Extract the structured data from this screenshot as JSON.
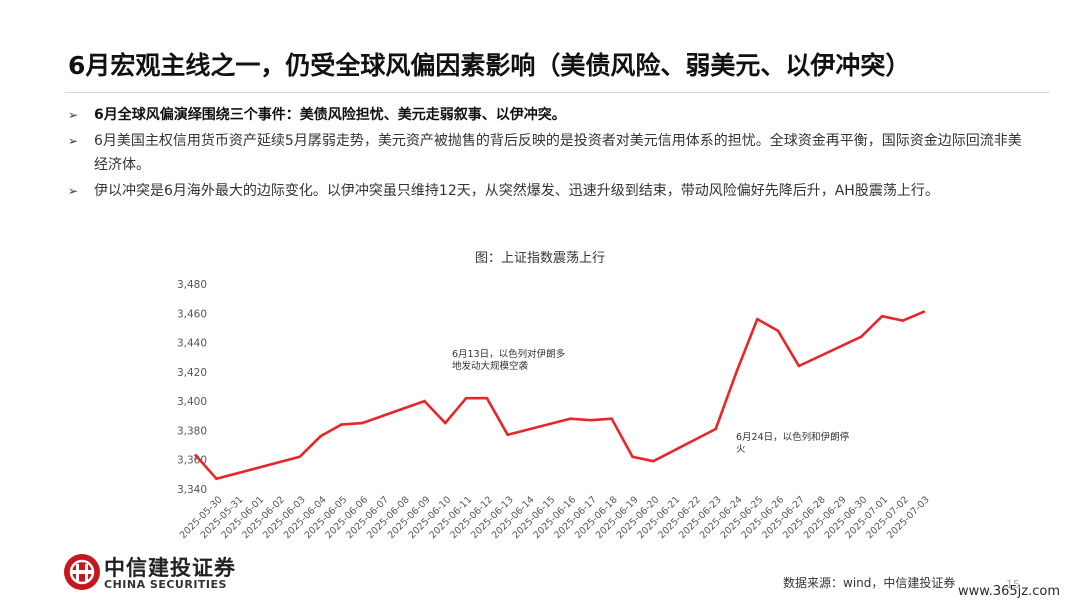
{
  "slide": {
    "title": "6月宏观主线之一，仍受全球风偏因素影响（美债风险、弱美元、以伊冲突）",
    "bullet_marker": "➢",
    "bullets": [
      {
        "text": "6月全球风偏演绎围绕三个事件：美债风险担忧、美元走弱叙事、以伊冲突。",
        "bold": true
      },
      {
        "text": "6月美国主权信用货币资产延续5月孱弱走势，美元资产被抛售的背后反映的是投资者对美元信用体系的担忧。全球资金再平衡，国际资金边际回流非美经济体。",
        "bold": false
      },
      {
        "text": "伊以冲突是6月海外最大的边际变化。以伊冲突虽只维持12天，从突然爆发、迅速升级到结束，带动风险偏好先降后升，AH股震荡上行。",
        "bold": false
      }
    ],
    "source": "数据来源：wind，中信建投证券",
    "page_number": "15",
    "watermark": "www.365jz.com"
  },
  "logo": {
    "name_cn": "中信建投证券",
    "name_en": "CHINA SECURITIES",
    "color": "#c8161d"
  },
  "chart_data": {
    "type": "line",
    "title": "图：上证指数震荡上行",
    "line_color": "#e8262a",
    "ylim": [
      3340,
      3480
    ],
    "yticks": [
      "3,340",
      "3,360",
      "3,380",
      "3,400",
      "3,420",
      "3,440",
      "3,460",
      "3,480"
    ],
    "grid": false,
    "legend": "none",
    "x_tick_labels": [
      "2025-05-30",
      "2025-05-31",
      "2025-06-01",
      "2025-06-02",
      "2025-06-03",
      "2025-06-04",
      "2025-06-05",
      "2025-06-06",
      "2025-06-07",
      "2025-06-08",
      "2025-06-09",
      "2025-06-10",
      "2025-06-11",
      "2025-06-12",
      "2025-06-13",
      "2025-06-14",
      "2025-06-15",
      "2025-06-16",
      "2025-06-17",
      "2025-06-18",
      "2025-06-19",
      "2025-06-20",
      "2025-06-21",
      "2025-06-22",
      "2025-06-23",
      "2025-06-24",
      "2025-06-25",
      "2025-06-26",
      "2025-06-27",
      "2025-06-28",
      "2025-06-29",
      "2025-06-30",
      "2025-07-01",
      "2025-07-02",
      "2025-07-03"
    ],
    "x": [
      "2025-05-29",
      "2025-05-30",
      "2025-06-03",
      "2025-06-04",
      "2025-06-05",
      "2025-06-06",
      "2025-06-09",
      "2025-06-10",
      "2025-06-11",
      "2025-06-12",
      "2025-06-13",
      "2025-06-16",
      "2025-06-17",
      "2025-06-18",
      "2025-06-19",
      "2025-06-20",
      "2025-06-23",
      "2025-06-24",
      "2025-06-25",
      "2025-06-26",
      "2025-06-27",
      "2025-06-30",
      "2025-07-01",
      "2025-07-02",
      "2025-07-03"
    ],
    "values": [
      3363,
      3347,
      3362,
      3376,
      3384,
      3385,
      3400,
      3385,
      3402,
      3402,
      3377,
      3388,
      3387,
      3388,
      3362,
      3359,
      3381,
      3420,
      3456,
      3448,
      3424,
      3444,
      3458,
      3455,
      3461
    ],
    "annotations": [
      {
        "text_lines": [
          "6月13日，以色列对伊朗多",
          "地发动大规模空袭"
        ],
        "date": "2025-06-13"
      },
      {
        "text_lines": [
          "6月24日，以色列和伊朗停",
          "火"
        ],
        "date": "2025-06-24"
      }
    ]
  }
}
